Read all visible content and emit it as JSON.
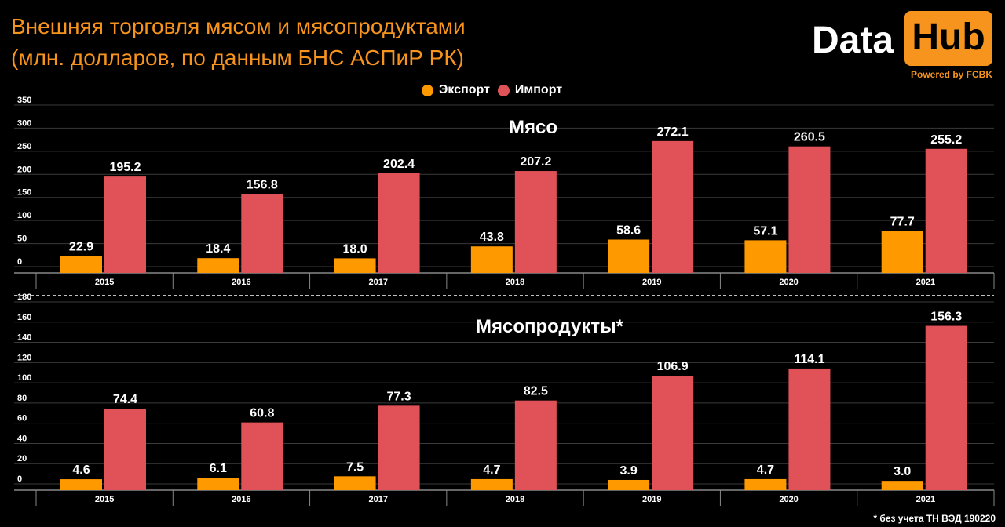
{
  "header": {
    "title_line1": "Внешняя торговля мясом и мясопродуктами",
    "title_line2": "(млн. долларов, по данным БНС АСПиР РК)"
  },
  "logo": {
    "data_text": "Data",
    "hub_text": "Hub",
    "powered_text": "Powered by FCBK"
  },
  "legend": {
    "export_label": "Экспорт",
    "import_label": "Импорт"
  },
  "colors": {
    "export": "#ff9900",
    "import": "#e05258",
    "title": "#f7941d",
    "grid": "#3a3a3a"
  },
  "footnote": "* без учета ТН ВЭД 190220",
  "chart_data": [
    {
      "type": "bar",
      "title": "Мясо",
      "categories": [
        "2015",
        "2016",
        "2017",
        "2018",
        "2019",
        "2020",
        "2021"
      ],
      "series": [
        {
          "name": "Экспорт",
          "values": [
            22.9,
            18.4,
            18.0,
            43.8,
            58.6,
            57.1,
            77.7
          ]
        },
        {
          "name": "Импорт",
          "values": [
            195.2,
            156.8,
            202.4,
            207.2,
            272.1,
            260.5,
            255.2
          ]
        }
      ],
      "ylim": [
        0,
        350
      ],
      "yticks": [
        0,
        50,
        100,
        150,
        200,
        250,
        300,
        350
      ],
      "grid": true,
      "legend": "top-center"
    },
    {
      "type": "bar",
      "title": "Мясопродукты*",
      "categories": [
        "2015",
        "2016",
        "2017",
        "2018",
        "2019",
        "2020",
        "2021"
      ],
      "series": [
        {
          "name": "Экспорт",
          "values": [
            4.6,
            6.1,
            7.5,
            4.7,
            3.9,
            4.7,
            3.0
          ]
        },
        {
          "name": "Импорт",
          "values": [
            74.4,
            60.8,
            77.3,
            82.5,
            106.9,
            114.1,
            156.3
          ]
        }
      ],
      "ylim": [
        0,
        180
      ],
      "yticks": [
        0,
        20,
        40,
        60,
        80,
        100,
        120,
        140,
        160,
        180
      ],
      "grid": true,
      "legend": "top-center"
    }
  ]
}
